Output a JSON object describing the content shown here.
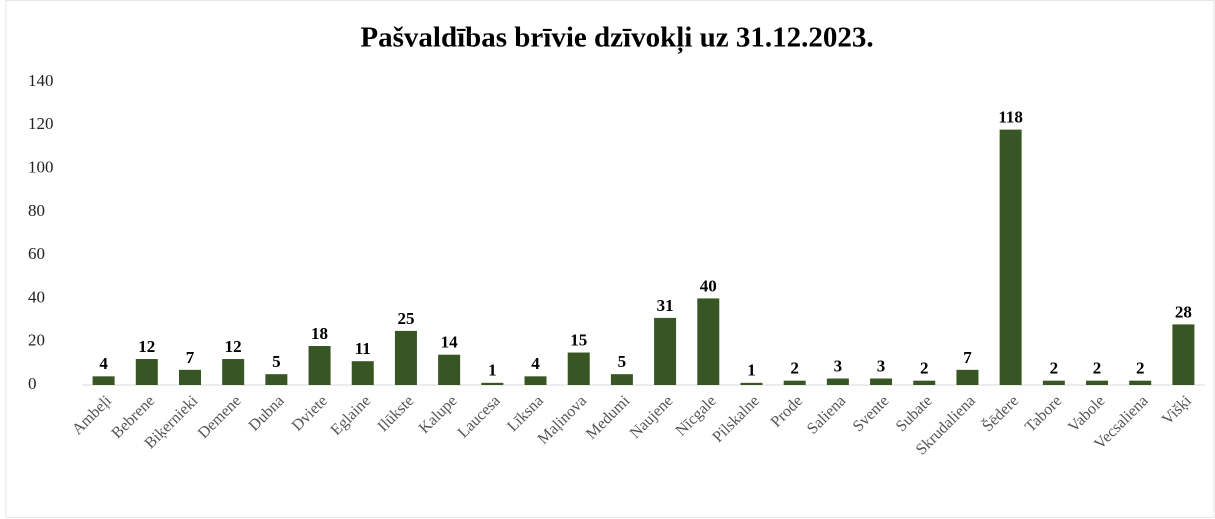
{
  "chart_data": {
    "type": "bar",
    "title": "Pašvaldības brīvie dzīvokļi uz 31.12.2023.",
    "categories": [
      "Ambeļi",
      "Bebrene",
      "Biķernieki",
      "Demene",
      "Dubna",
      "Dviete",
      "Eglaine",
      "Ilūkste",
      "Kalupe",
      "Laucesa",
      "Līksna",
      "Maļinova",
      "Medumi",
      "Naujene",
      "Nīcgale",
      "Pilskalne",
      "Prode",
      "Saliena",
      "Svente",
      "Subate",
      "Skrudaliena",
      "Šēdere",
      "Tabore",
      "Vabole",
      "Vecsaliena",
      "Višķi"
    ],
    "values": [
      4,
      12,
      7,
      12,
      5,
      18,
      11,
      25,
      14,
      1,
      4,
      15,
      5,
      31,
      40,
      1,
      2,
      3,
      3,
      2,
      7,
      118,
      2,
      2,
      2,
      28
    ],
    "color": "#375623",
    "ylim": [
      0,
      140
    ],
    "yticks": [
      0,
      20,
      40,
      60,
      80,
      100,
      120,
      140
    ],
    "grid": false
  }
}
